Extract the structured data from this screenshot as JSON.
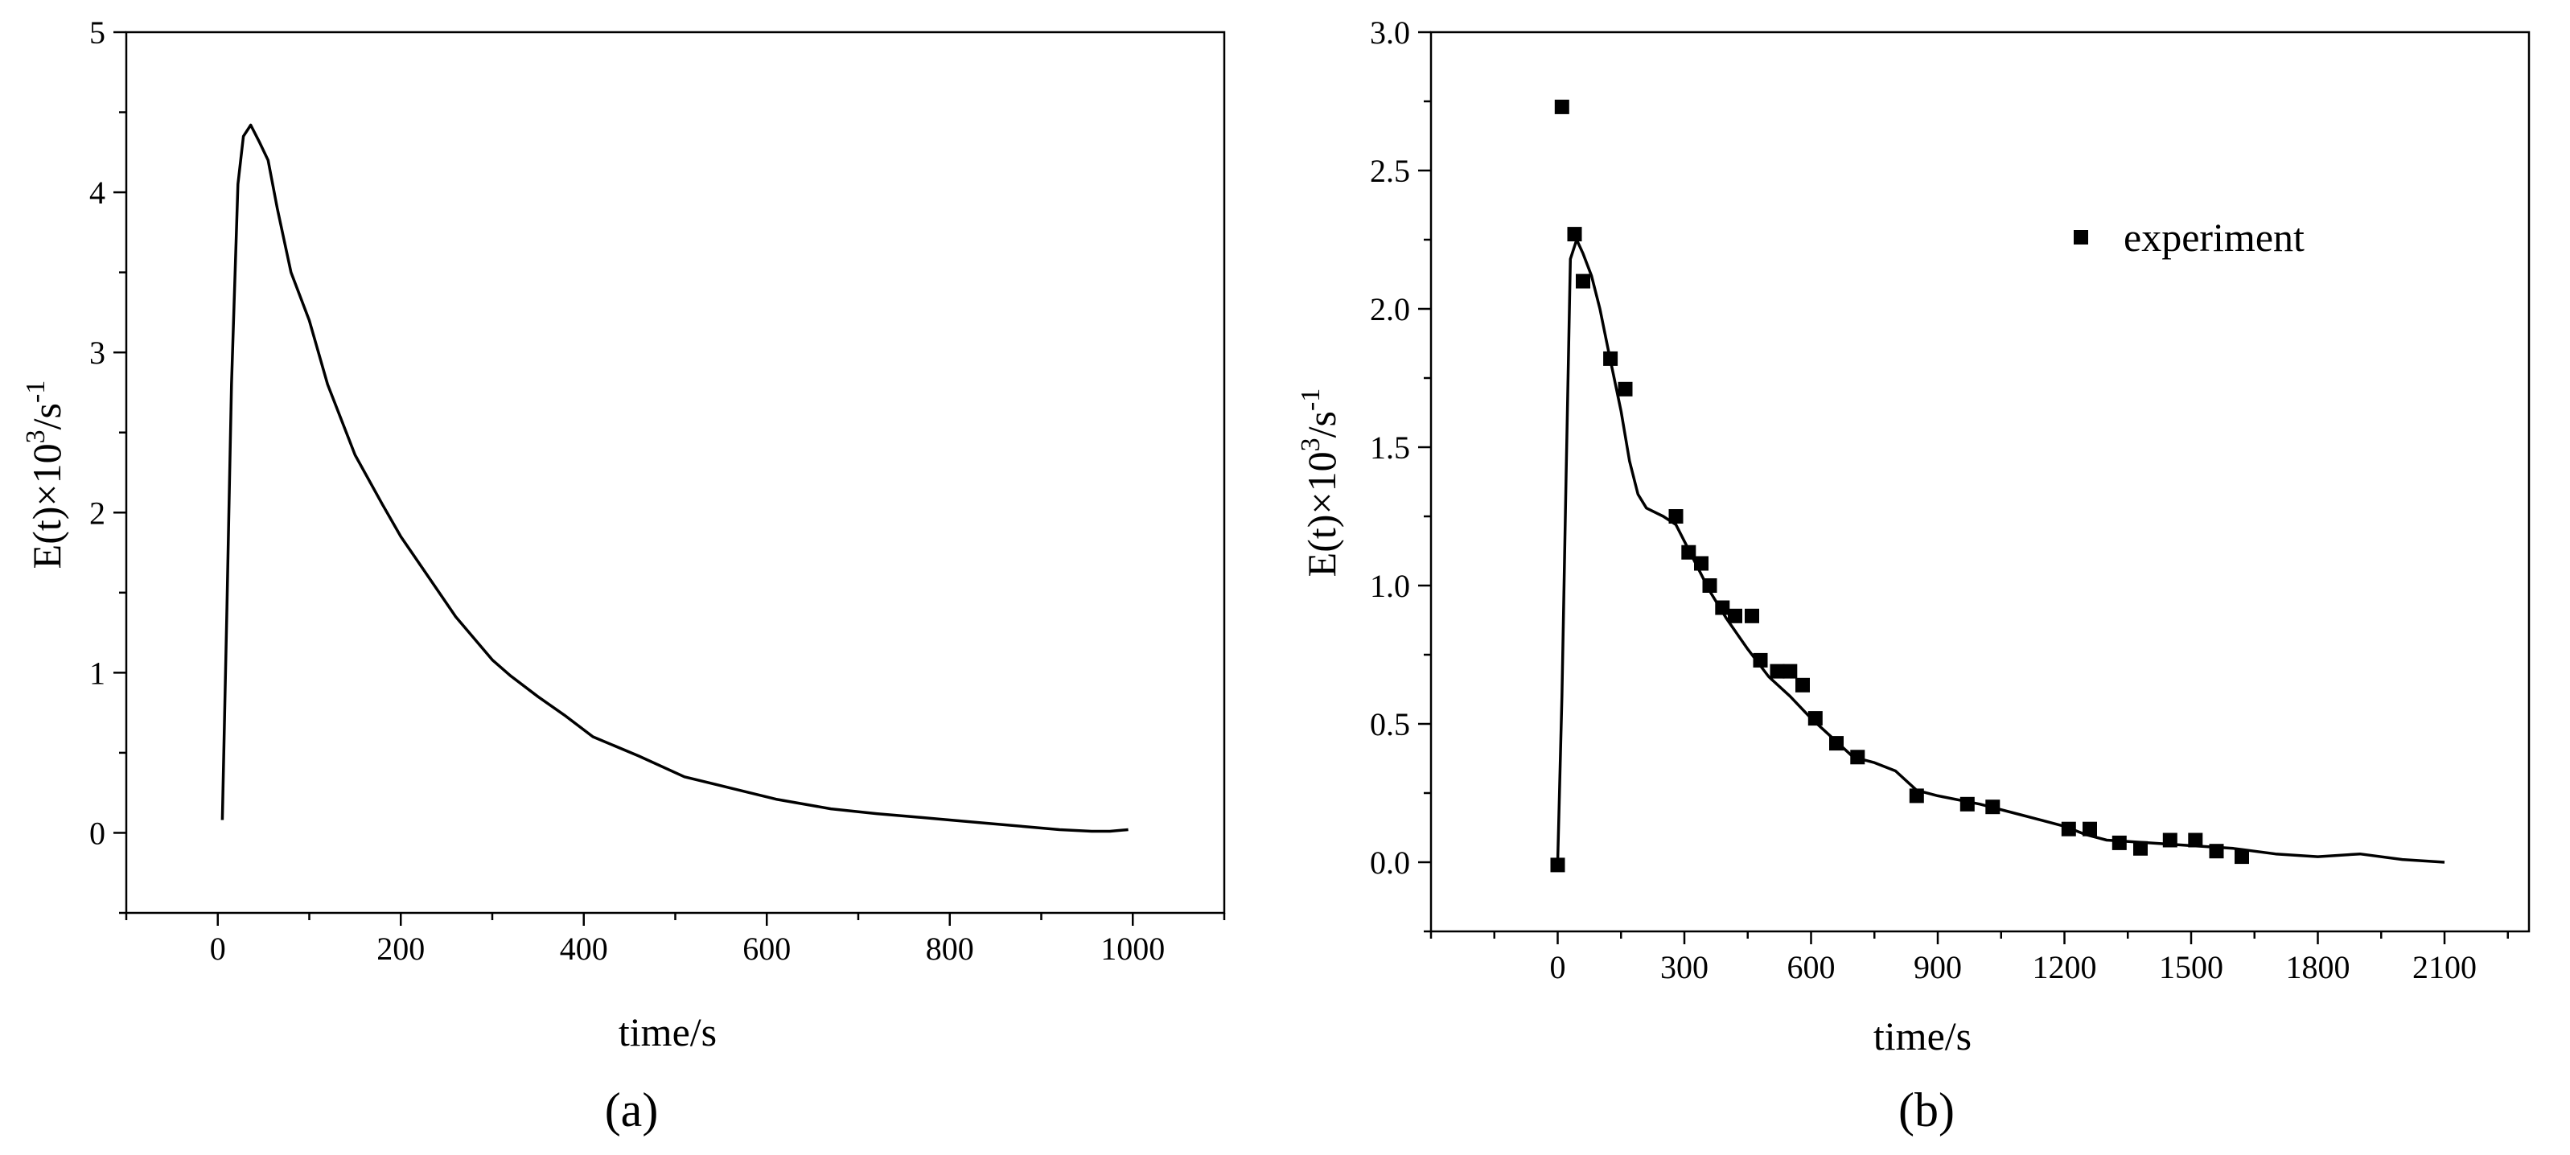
{
  "chart_data": [
    {
      "type": "line",
      "panel_label": "(a)",
      "xlabel": "time/s",
      "ylabel": "E(t)×10³/s⁻¹",
      "ylabel_base": "E(t)×10",
      "ylabel_sup1": "3",
      "ylabel_mid": "/s",
      "ylabel_sup2": "-1",
      "xlim": [
        -100,
        1100
      ],
      "ylim": [
        -0.5,
        5
      ],
      "xticks": [
        0,
        200,
        400,
        600,
        800,
        1000
      ],
      "yticks": [
        0,
        1,
        2,
        3,
        4,
        5
      ],
      "series": [
        {
          "type": "line",
          "x": [
            5,
            10,
            15,
            22,
            28,
            36,
            45,
            55,
            65,
            80,
            100,
            120,
            150,
            180,
            200,
            230,
            260,
            300,
            320,
            350,
            380,
            410,
            460,
            510,
            560,
            610,
            670,
            720,
            760,
            800,
            840,
            880,
            920,
            955,
            975,
            995
          ],
          "y": [
            0.08,
            1.4,
            2.8,
            4.05,
            4.35,
            4.42,
            4.32,
            4.2,
            3.9,
            3.5,
            3.2,
            2.8,
            2.36,
            2.05,
            1.85,
            1.6,
            1.35,
            1.08,
            0.98,
            0.85,
            0.73,
            0.6,
            0.48,
            0.35,
            0.28,
            0.21,
            0.15,
            0.12,
            0.1,
            0.08,
            0.06,
            0.04,
            0.02,
            0.01,
            0.01,
            0.02
          ]
        }
      ],
      "legend": "none",
      "grid": false
    },
    {
      "type": "line+scatter",
      "panel_label": "(b)",
      "xlabel": "time/s",
      "ylabel": "E(t)×10³/s⁻¹",
      "ylabel_base": "E(t)×10",
      "ylabel_sup1": "3",
      "ylabel_mid": "/s",
      "ylabel_sup2": "-1",
      "xlim": [
        -300,
        2300
      ],
      "ylim": [
        -0.25,
        3
      ],
      "xticks": [
        0,
        300,
        600,
        900,
        1200,
        1500,
        1800,
        2100
      ],
      "yticks": [
        0.0,
        0.5,
        1.0,
        1.5,
        2.0,
        2.5,
        3.0
      ],
      "ytick_labels": [
        "0.0",
        "0.5",
        "1.0",
        "1.5",
        "2.0",
        "2.5",
        "3.0"
      ],
      "legend": "top-right",
      "legend_label": "experiment",
      "grid": false,
      "series": [
        {
          "type": "line",
          "x": [
            0,
            10,
            20,
            30,
            45,
            60,
            80,
            100,
            120,
            150,
            170,
            190,
            210,
            250,
            280,
            320,
            360,
            400,
            450,
            500,
            550,
            600,
            650,
            700,
            750,
            800,
            850,
            900,
            1000,
            1100,
            1200,
            1250,
            1300,
            1400,
            1500,
            1600,
            1700,
            1800,
            1900,
            2000,
            2100
          ],
          "y": [
            0.0,
            0.6,
            1.4,
            2.18,
            2.25,
            2.2,
            2.12,
            2.0,
            1.85,
            1.63,
            1.45,
            1.33,
            1.28,
            1.25,
            1.22,
            1.1,
            0.98,
            0.88,
            0.77,
            0.67,
            0.6,
            0.52,
            0.45,
            0.38,
            0.36,
            0.33,
            0.26,
            0.24,
            0.21,
            0.17,
            0.13,
            0.1,
            0.08,
            0.07,
            0.06,
            0.05,
            0.03,
            0.02,
            0.03,
            0.01,
            0.0
          ]
        },
        {
          "type": "scatter",
          "name": "experiment",
          "x": [
            0,
            10,
            40,
            60,
            125,
            160,
            280,
            310,
            340,
            360,
            390,
            420,
            460,
            480,
            520,
            550,
            580,
            610,
            660,
            710,
            850,
            970,
            1030,
            1210,
            1260,
            1330,
            1380,
            1450,
            1510,
            1560,
            1620
          ],
          "y": [
            -0.01,
            2.73,
            2.27,
            2.1,
            1.82,
            1.71,
            1.25,
            1.12,
            1.08,
            1.0,
            0.92,
            0.89,
            0.89,
            0.73,
            0.69,
            0.69,
            0.64,
            0.52,
            0.43,
            0.38,
            0.24,
            0.21,
            0.2,
            0.12,
            0.12,
            0.07,
            0.05,
            0.08,
            0.08,
            0.04,
            0.02
          ]
        }
      ]
    }
  ]
}
